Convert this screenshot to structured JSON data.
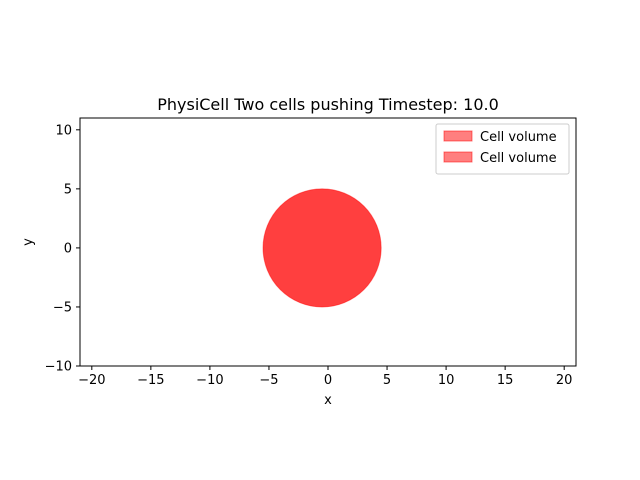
{
  "chart_data": {
    "type": "scatter",
    "title": "PhysiCell Two cells pushing Timestep: 10.0",
    "xlabel": "x",
    "ylabel": "y",
    "xlim": [
      -21,
      21
    ],
    "ylim": [
      -10,
      11
    ],
    "xticks": [
      -20,
      -15,
      -10,
      -5,
      0,
      5,
      10,
      15,
      20
    ],
    "yticks": [
      -10,
      -5,
      0,
      5,
      10
    ],
    "grid": false,
    "legend_position": "top-right",
    "legend": [
      "Cell volume",
      "Cell volume"
    ],
    "series": [
      {
        "name": "Cell volume",
        "type": "circle",
        "cx": -0.5,
        "cy": 0,
        "radius": 5,
        "color": "#ff0000",
        "alpha": 0.5
      },
      {
        "name": "Cell volume",
        "type": "circle",
        "cx": -0.5,
        "cy": 0,
        "radius": 5,
        "color": "#ff0000",
        "alpha": 0.5
      }
    ]
  }
}
